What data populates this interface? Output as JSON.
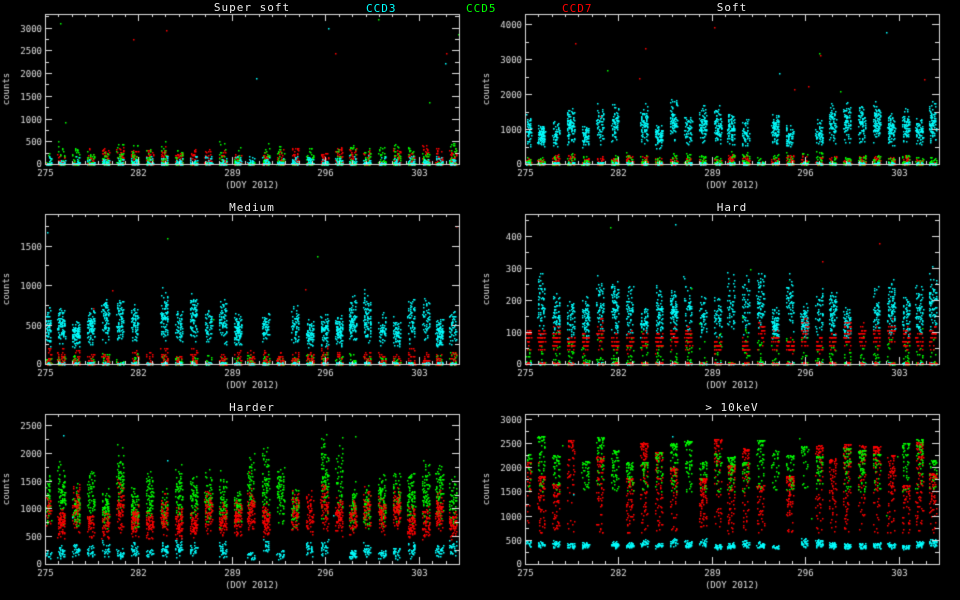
{
  "background": "#000000",
  "chart_data": {
    "type": "scatter",
    "xlabel": "(DOY 2012)",
    "ylabel": "counts",
    "xlim": [
      275,
      306
    ],
    "xticks": [
      275,
      282,
      289,
      296,
      303
    ],
    "legend": [
      {
        "label": "CCD3",
        "color": "#00ffff"
      },
      {
        "label": "CCD5",
        "color": "#00ff00"
      },
      {
        "label": "CCD7",
        "color": "#ff0000"
      }
    ],
    "cluster_centers": [
      275.15,
      276.2,
      277.3,
      278.4,
      279.5,
      280.6,
      281.7,
      282.8,
      283.9,
      285.0,
      286.1,
      287.2,
      288.3,
      289.4,
      290.4,
      291.5,
      292.6,
      293.7,
      294.8,
      295.9,
      297.0,
      298.0,
      299.1,
      300.2,
      301.3,
      302.4,
      303.5,
      304.5,
      305.5
    ],
    "panels": [
      {
        "title": "Super soft",
        "ylim": [
          0,
          3300
        ],
        "yticks": [
          500,
          1000,
          1500,
          2000,
          2500,
          3000
        ],
        "floor": true,
        "stray": 12,
        "series": [
          {
            "name": "CCD7",
            "color": "#ff0000",
            "ymin": 5,
            "ymax": 430,
            "pts": 40,
            "bias": "bottom"
          },
          {
            "name": "CCD5",
            "color": "#00ff00",
            "ymin": 5,
            "ymax": 520,
            "pts": 26,
            "bias": "bottom"
          },
          {
            "name": "CCD3",
            "color": "#00ffff",
            "ymin": 2,
            "ymax": 210,
            "pts": 24,
            "bias": "bottom"
          }
        ]
      },
      {
        "title": "Soft",
        "ylim": [
          0,
          4300
        ],
        "yticks": [
          1000,
          2000,
          3000,
          4000
        ],
        "floor": true,
        "stray": 14,
        "series": [
          {
            "name": "CCD7",
            "color": "#ff0000",
            "ymin": 5,
            "ymax": 300,
            "pts": 34,
            "bias": "bottom"
          },
          {
            "name": "CCD5",
            "color": "#00ff00",
            "ymin": 5,
            "ymax": 400,
            "pts": 22,
            "bias": "bottom"
          },
          {
            "name": "CCD3",
            "color": "#00ffff",
            "ymin": 250,
            "ymax": 1950,
            "pts": 80,
            "bias": "mid"
          }
        ]
      },
      {
        "title": "Medium",
        "ylim": [
          0,
          1900
        ],
        "yticks": [
          500,
          1000,
          1500
        ],
        "floor": true,
        "stray": 10,
        "series": [
          {
            "name": "CCD5",
            "color": "#00ff00",
            "ymin": 5,
            "ymax": 170,
            "pts": 18,
            "bias": "bottom"
          },
          {
            "name": "CCD7",
            "color": "#ff0000",
            "ymin": 5,
            "ymax": 230,
            "pts": 34,
            "bias": "bottom",
            "quant": 25
          },
          {
            "name": "CCD3",
            "color": "#00ffff",
            "ymin": 90,
            "ymax": 1020,
            "pts": 80,
            "bias": "mid"
          }
        ]
      },
      {
        "title": "Hard",
        "ylim": [
          0,
          470
        ],
        "yticks": [
          100,
          200,
          300,
          400
        ],
        "floor": true,
        "stray": 9,
        "series": [
          {
            "name": "CCD5",
            "color": "#00ff00",
            "ymin": 4,
            "ymax": 115,
            "pts": 16,
            "bias": "bottom"
          },
          {
            "name": "CCD3",
            "color": "#00ffff",
            "ymin": 35,
            "ymax": 315,
            "pts": 70,
            "bias": "mid"
          },
          {
            "name": "CCD7",
            "color": "#ff0000",
            "ymin": 18,
            "ymax": 155,
            "pts": 40,
            "bias": "mid",
            "quant": 12
          }
        ]
      },
      {
        "title": "Harder",
        "ylim": [
          0,
          2700
        ],
        "yticks": [
          500,
          1000,
          1500,
          2000,
          2500
        ],
        "floor": false,
        "stray": 8,
        "series": [
          {
            "name": "CCD3",
            "color": "#00ffff",
            "ymin": 25,
            "ymax": 500,
            "pts": 30,
            "bias": "mid"
          },
          {
            "name": "CCD5",
            "color": "#00ff00",
            "ymin": 350,
            "ymax": 2350,
            "pts": 70,
            "bias": "mid"
          },
          {
            "name": "CCD7",
            "color": "#ff0000",
            "ymin": 280,
            "ymax": 1600,
            "pts": 70,
            "bias": "mid"
          }
        ]
      },
      {
        "title": "> 10keV",
        "ylim": [
          0,
          3100
        ],
        "yticks": [
          500,
          1000,
          1500,
          2000,
          2500,
          3000
        ],
        "floor": false,
        "stray": 10,
        "series": [
          {
            "name": "CCD3",
            "color": "#00ffff",
            "ymin": 280,
            "ymax": 560,
            "pts": 36,
            "bias": "mid"
          },
          {
            "name": "CCD7",
            "color": "#ff0000",
            "ymin": 650,
            "ymax": 2600,
            "pts": 80,
            "bias": "top"
          },
          {
            "name": "CCD5",
            "color": "#00ff00",
            "ymin": 1500,
            "ymax": 2680,
            "pts": 50,
            "bias": "top"
          }
        ]
      }
    ]
  }
}
